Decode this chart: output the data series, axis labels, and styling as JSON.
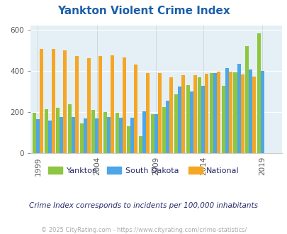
{
  "title": "Yankton Violent Crime Index",
  "subtitle": "Crime Index corresponds to incidents per 100,000 inhabitants",
  "footer": "© 2025 CityRating.com - https://www.cityrating.com/crime-statistics/",
  "years": [
    1999,
    2000,
    2001,
    2002,
    2003,
    2004,
    2005,
    2006,
    2007,
    2008,
    2009,
    2011,
    2012,
    2013,
    2014,
    2015,
    2016,
    2017,
    2018,
    2019,
    2020
  ],
  "yankton": [
    197,
    213,
    220,
    237,
    147,
    211,
    202,
    197,
    130,
    84,
    190,
    225,
    287,
    330,
    370,
    389,
    328,
    393,
    520,
    582,
    0
  ],
  "south_dakota": [
    165,
    160,
    178,
    175,
    170,
    170,
    178,
    172,
    172,
    204,
    190,
    257,
    323,
    300,
    327,
    389,
    415,
    435,
    407,
    399,
    0
  ],
  "national": [
    508,
    508,
    501,
    474,
    464,
    472,
    475,
    466,
    430,
    390,
    390,
    370,
    378,
    380,
    388,
    396,
    397,
    382,
    373,
    0,
    0
  ],
  "colors": {
    "yankton": "#8dc63f",
    "south_dakota": "#4da6e8",
    "national": "#f5a623"
  },
  "ylim": [
    0,
    620
  ],
  "yticks": [
    0,
    200,
    400,
    600
  ],
  "xtick_years": [
    1999,
    2004,
    2009,
    2014,
    2019
  ],
  "bg_color": "#e4f0f6",
  "title_color": "#1a5fa8",
  "subtitle_color": "#2a2a6a",
  "footer_color": "#aaaaaa",
  "legend_label_color": "#2a2a6a"
}
